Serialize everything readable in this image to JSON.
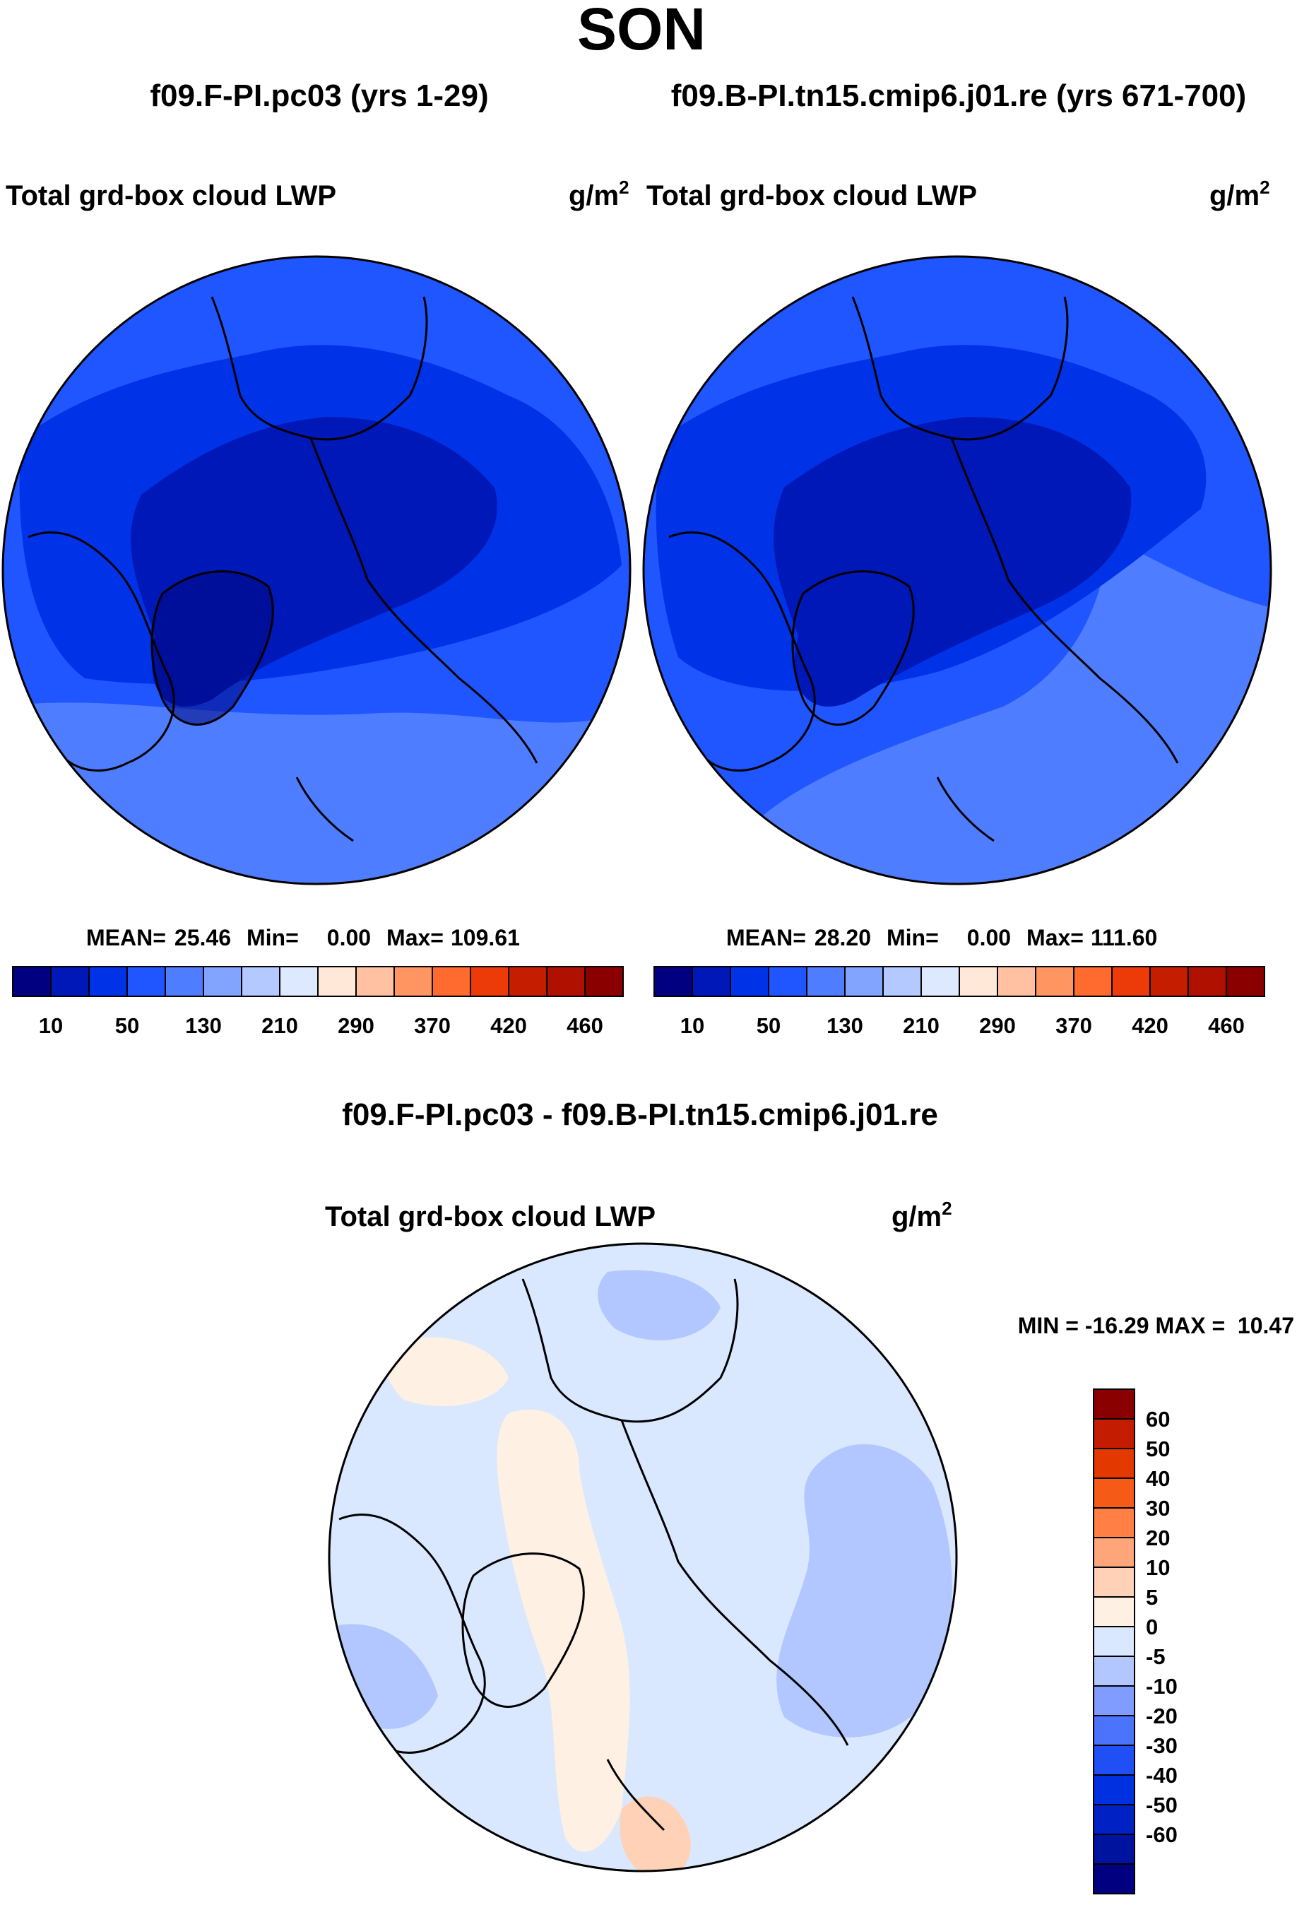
{
  "title": "SON",
  "colors": {
    "abs_levels": [
      "#000080",
      "#0018b8",
      "#0032e8",
      "#1f56ff",
      "#4f7dff",
      "#82a4ff",
      "#b4c9ff",
      "#dde9ff",
      "#ffe8d8",
      "#ffc1a1",
      "#ff9561",
      "#ff6a2e",
      "#ec3a08",
      "#c51d00",
      "#b01000",
      "#8a0000"
    ],
    "diff_levels": [
      "#000080",
      "#00139f",
      "#0022c4",
      "#0031e1",
      "#1f4ff5",
      "#4c73fb",
      "#809cff",
      "#b2c7ff",
      "#d9e8ff",
      "#fff0e4",
      "#ffd1b6",
      "#ffa57a",
      "#ff7f45",
      "#f65a17",
      "#e33800",
      "#c41c00",
      "#8a0000"
    ],
    "land_outline": "#000000"
  },
  "chart_data": [
    {
      "type": "heatmap",
      "panel": "top-left",
      "title": "f09.F-PI.pc03 (yrs 1-29)",
      "subtitle": "Total grd-box cloud LWP",
      "units": "g/m",
      "units_superscript": "2",
      "projection": "north polar stereographic",
      "stats": {
        "mean_label": "MEAN=",
        "mean": "25.46",
        "min_label": "Min=",
        "min": "0.00",
        "max_label": "Max=",
        "max": "109.61"
      },
      "colorbar_ticks": [
        "10",
        "50",
        "130",
        "210",
        "290",
        "370",
        "420",
        "460"
      ]
    },
    {
      "type": "heatmap",
      "panel": "top-right",
      "title": "f09.B-PI.tn15.cmip6.j01.re (yrs 671-700)",
      "subtitle": "Total grd-box cloud LWP",
      "units": "g/m",
      "units_superscript": "2",
      "projection": "north polar stereographic",
      "stats": {
        "mean_label": "MEAN=",
        "mean": "28.20",
        "min_label": "Min=",
        "min": "0.00",
        "max_label": "Max=",
        "max": "111.60"
      },
      "colorbar_ticks": [
        "10",
        "50",
        "130",
        "210",
        "290",
        "370",
        "420",
        "460"
      ]
    },
    {
      "type": "heatmap",
      "panel": "bottom",
      "title": "f09.F-PI.pc03 - f09.B-PI.tn15.cmip6.j01.re",
      "subtitle": "Total grd-box cloud LWP",
      "units": "g/m",
      "units_superscript": "2",
      "projection": "north polar stereographic",
      "stats_text": "MIN = -16.29 MAX =  10.47",
      "colorbar_ticks": [
        "60",
        "50",
        "40",
        "30",
        "20",
        "10",
        "5",
        "0",
        "-5",
        "-10",
        "-20",
        "-30",
        "-40",
        "-50",
        "-60"
      ]
    }
  ]
}
